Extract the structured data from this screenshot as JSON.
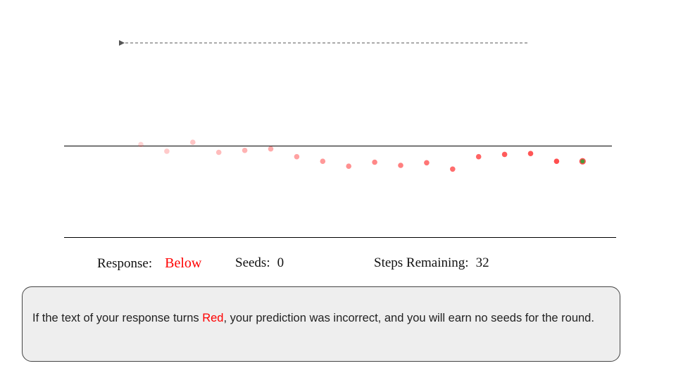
{
  "colors": {
    "accent_red": "#ff0000",
    "dot_red": "#ff4f4f",
    "current_dot": "#4a9a3a",
    "line": "#000000",
    "arrow": "#555555",
    "box_bg": "#eeeeee"
  },
  "status": {
    "response_label": "Response:",
    "response_value": "Below",
    "seeds_label": "Seeds:",
    "seeds_value": "0",
    "steps_label": "Steps Remaining:",
    "steps_value": "32"
  },
  "note": {
    "before": "If the text of your response turns ",
    "highlight": "Red",
    "after": ", your prediction was incorrect, and you will earn no seeds for the round."
  },
  "trajectory": {
    "direction_arrow": "left",
    "points": [
      {
        "v": 0.5,
        "opacity": 0.25
      },
      {
        "v": -1.8,
        "opacity": 0.3
      },
      {
        "v": 1.3,
        "opacity": 0.33
      },
      {
        "v": -2.2,
        "opacity": 0.38
      },
      {
        "v": -1.5,
        "opacity": 0.43
      },
      {
        "v": -1.0,
        "opacity": 0.48
      },
      {
        "v": -3.7,
        "opacity": 0.53
      },
      {
        "v": -5.3,
        "opacity": 0.58
      },
      {
        "v": -7.0,
        "opacity": 0.63
      },
      {
        "v": -5.6,
        "opacity": 0.68
      },
      {
        "v": -6.7,
        "opacity": 0.73
      },
      {
        "v": -5.8,
        "opacity": 0.78
      },
      {
        "v": -8.0,
        "opacity": 0.83
      },
      {
        "v": -3.7,
        "opacity": 0.88
      },
      {
        "v": -2.9,
        "opacity": 0.93
      },
      {
        "v": -2.6,
        "opacity": 0.96
      },
      {
        "v": -5.3,
        "opacity": 1.0
      },
      {
        "v": -5.3,
        "opacity": 1.0,
        "current": true
      }
    ]
  }
}
